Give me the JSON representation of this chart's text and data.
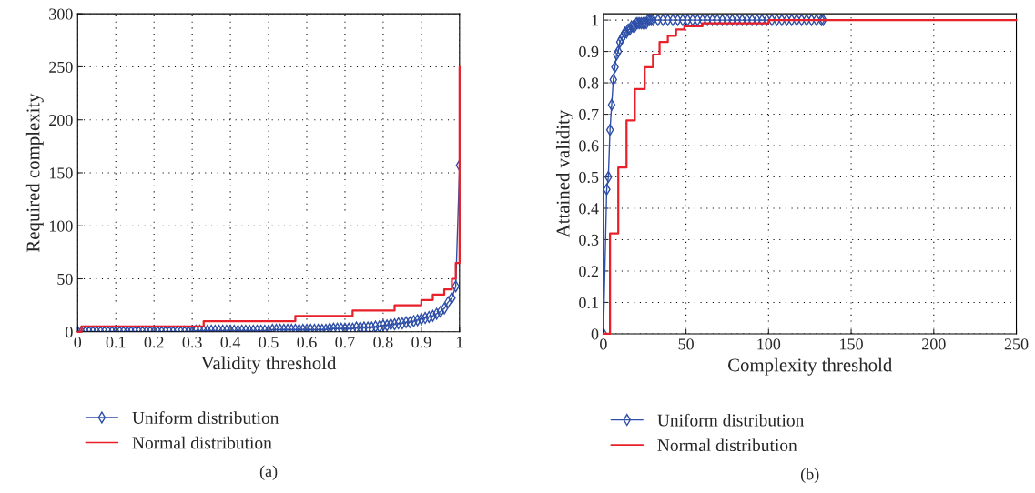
{
  "chart_data": [
    {
      "type": "line",
      "xlabel": "Validity threshold",
      "ylabel": "Required complexity",
      "xlim": [
        0,
        1
      ],
      "ylim": [
        0,
        300
      ],
      "xticks": [
        0,
        0.1,
        0.2,
        0.3,
        0.4,
        0.5,
        0.6,
        0.7,
        0.8,
        0.9,
        1
      ],
      "yticks": [
        0,
        50,
        100,
        150,
        200,
        250,
        300
      ],
      "grid": true,
      "legend": "bottom",
      "annotations": [
        "(a)"
      ],
      "series": [
        {
          "name": "Uniform distribution",
          "marker": "diamond",
          "color": "#2e4fa8",
          "x": [
            0,
            0.01,
            0.02,
            0.03,
            0.04,
            0.05,
            0.06,
            0.07,
            0.08,
            0.09,
            0.1,
            0.11,
            0.12,
            0.13,
            0.14,
            0.15,
            0.16,
            0.17,
            0.18,
            0.19,
            0.2,
            0.21,
            0.22,
            0.23,
            0.24,
            0.25,
            0.26,
            0.27,
            0.28,
            0.29,
            0.3,
            0.31,
            0.32,
            0.33,
            0.34,
            0.35,
            0.36,
            0.37,
            0.38,
            0.39,
            0.4,
            0.41,
            0.42,
            0.43,
            0.44,
            0.45,
            0.46,
            0.47,
            0.48,
            0.49,
            0.5,
            0.51,
            0.52,
            0.53,
            0.54,
            0.55,
            0.56,
            0.57,
            0.58,
            0.59,
            0.6,
            0.61,
            0.62,
            0.63,
            0.64,
            0.65,
            0.66,
            0.67,
            0.68,
            0.69,
            0.7,
            0.71,
            0.72,
            0.73,
            0.74,
            0.75,
            0.76,
            0.77,
            0.78,
            0.79,
            0.8,
            0.81,
            0.82,
            0.83,
            0.84,
            0.85,
            0.86,
            0.87,
            0.88,
            0.89,
            0.9,
            0.91,
            0.92,
            0.93,
            0.94,
            0.95,
            0.96,
            0.97,
            0.98,
            0.99,
            1
          ],
          "values": [
            0,
            0,
            0,
            0,
            0,
            0,
            0,
            0,
            0,
            0,
            0,
            0,
            0,
            0,
            0,
            0,
            0,
            0,
            0,
            0,
            0,
            0,
            0,
            0,
            0,
            0,
            0,
            0,
            0,
            0,
            0,
            1,
            1,
            1,
            1,
            1,
            1,
            1,
            1,
            1,
            1,
            1,
            1,
            1,
            1,
            1,
            1,
            1,
            1,
            1,
            1,
            2,
            2,
            2,
            2,
            2,
            2,
            2,
            2,
            2,
            2,
            2,
            2,
            2,
            2,
            2,
            3,
            3,
            3,
            3,
            3,
            3,
            3,
            4,
            4,
            4,
            4,
            4,
            5,
            5,
            6,
            6,
            7,
            7,
            8,
            8,
            9,
            9,
            10,
            11,
            12,
            13,
            14,
            15,
            17,
            19,
            22,
            28,
            32,
            43,
            157
          ]
        },
        {
          "name": "Normal distribution",
          "type": "step",
          "marker": "none",
          "color": "#e8202a",
          "x": [
            0,
            0.01,
            0.33,
            0.57,
            0.72,
            0.83,
            0.9,
            0.93,
            0.96,
            0.98,
            0.99,
            1
          ],
          "values": [
            0,
            5,
            10,
            15,
            20,
            25,
            30,
            35,
            40,
            50,
            65,
            250
          ]
        }
      ]
    },
    {
      "type": "line",
      "xlabel": "Complexity threshold",
      "ylabel": "Attained validity",
      "xlim": [
        0,
        250
      ],
      "ylim": [
        0,
        1.02
      ],
      "xticks": [
        0,
        50,
        100,
        150,
        200,
        250
      ],
      "yticks": [
        0,
        0.1,
        0.2,
        0.3,
        0.4,
        0.5,
        0.6,
        0.7,
        0.8,
        0.9,
        1
      ],
      "grid": true,
      "legend": "bottom",
      "annotations": [
        "(b)"
      ],
      "series": [
        {
          "name": "Uniform distribution",
          "marker": "diamond",
          "color": "#2e4fa8",
          "x": [
            0,
            2,
            3,
            4,
            5,
            6,
            7,
            8,
            9,
            10,
            11,
            12,
            13,
            14,
            15,
            16,
            17,
            18,
            19,
            20,
            21,
            22,
            23,
            24,
            25,
            26,
            27,
            28,
            29,
            30,
            33,
            36,
            39,
            42,
            45,
            48,
            51,
            54,
            57,
            60,
            63,
            66,
            69,
            72,
            75,
            78,
            81,
            84,
            87,
            90,
            93,
            96,
            99,
            102,
            105,
            108,
            111,
            114,
            117,
            120,
            123,
            126,
            129,
            132,
            133
          ],
          "values": [
            0,
            0.46,
            0.5,
            0.65,
            0.73,
            0.81,
            0.85,
            0.89,
            0.9,
            0.93,
            0.94,
            0.95,
            0.96,
            0.96,
            0.97,
            0.97,
            0.98,
            0.98,
            0.98,
            0.99,
            0.99,
            0.99,
            0.99,
            0.99,
            0.99,
            0.99,
            1,
            1,
            1,
            1,
            1,
            1,
            1,
            1,
            1,
            1,
            1,
            1,
            1,
            1,
            1,
            1,
            1,
            1,
            1,
            1,
            1,
            1,
            1,
            1,
            1,
            1,
            1,
            1,
            1,
            1,
            1,
            1,
            1,
            1,
            1,
            1,
            1,
            1,
            1
          ]
        },
        {
          "name": "Normal distribution",
          "type": "step",
          "marker": "none",
          "color": "#e8202a",
          "x": [
            0,
            4,
            9,
            14,
            19,
            25,
            30,
            34,
            39,
            44,
            49,
            54,
            60,
            70,
            100,
            250
          ],
          "values": [
            0,
            0.32,
            0.53,
            0.68,
            0.78,
            0.85,
            0.89,
            0.93,
            0.95,
            0.97,
            0.98,
            0.98,
            0.99,
            0.99,
            1,
            1
          ]
        }
      ]
    }
  ]
}
